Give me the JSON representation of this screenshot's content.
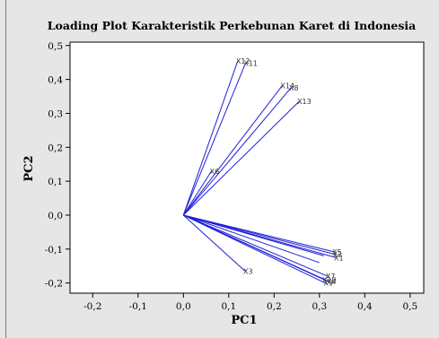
{
  "chart_data": {
    "type": "line",
    "title": "Loading Plot  Karakteristik Perkebunan Karet di Indonesia",
    "xlabel": "PC1",
    "ylabel": "PC2",
    "xlim": [
      -0.25,
      0.53
    ],
    "ylim": [
      -0.23,
      0.51
    ],
    "x_ticks": [
      -0.2,
      -0.1,
      0.0,
      0.1,
      0.2,
      0.3,
      0.4,
      0.5
    ],
    "x_tick_labels": [
      "-0,2",
      "-0,1",
      "0,0",
      "0,1",
      "0,2",
      "0,3",
      "0,4",
      "0,5"
    ],
    "y_ticks": [
      -0.2,
      -0.1,
      0.0,
      0.1,
      0.2,
      0.3,
      0.4,
      0.5
    ],
    "y_tick_labels": [
      "-0,2",
      "-0,1",
      "0,0",
      "0,1",
      "0,2",
      "0,3",
      "0,4",
      "0,5"
    ],
    "grid": false,
    "line_color": "#1f1fd6",
    "origin": [
      0,
      0
    ],
    "loadings": [
      {
        "label": "X12",
        "x": 0.12,
        "y": 0.455
      },
      {
        "label": "X11",
        "x": 0.137,
        "y": 0.448
      },
      {
        "label": "X14",
        "x": 0.218,
        "y": 0.382
      },
      {
        "label": "X8",
        "x": 0.237,
        "y": 0.375
      },
      {
        "label": "X13",
        "x": 0.255,
        "y": 0.335
      },
      {
        "label": "X6",
        "x": 0.062,
        "y": 0.13
      },
      {
        "label": "X5",
        "x": 0.332,
        "y": -0.108
      },
      {
        "label": "X2",
        "x": 0.333,
        "y": -0.115
      },
      {
        "label": "X1",
        "x": 0.336,
        "y": -0.125
      },
      {
        "label": "X3",
        "x": 0.136,
        "y": -0.165
      },
      {
        "label": "X7",
        "x": 0.318,
        "y": -0.18
      },
      {
        "label": "X10",
        "x": 0.31,
        "y": -0.19
      },
      {
        "label": "X4",
        "x": 0.32,
        "y": -0.195
      },
      {
        "label": "X9",
        "x": 0.313,
        "y": -0.2
      }
    ],
    "extra_lines": [
      {
        "x": 0.31,
        "y": -0.12
      },
      {
        "x": 0.3,
        "y": -0.14
      }
    ]
  }
}
